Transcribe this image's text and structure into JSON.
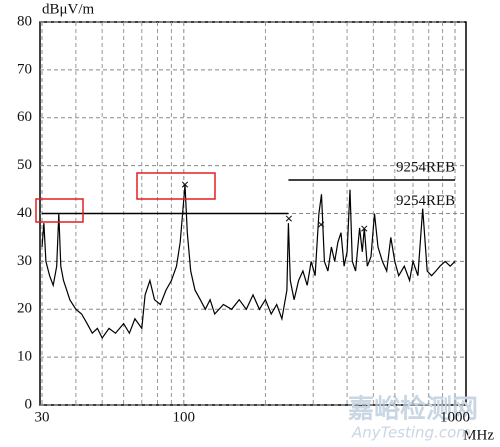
{
  "chart_data": {
    "type": "line",
    "y_label": "dBμV/m",
    "x_label": "MHz",
    "log_x": true,
    "grid": true,
    "xlim": [
      30,
      1000
    ],
    "ylim": [
      0,
      80
    ],
    "xticks": [
      30,
      100,
      1000
    ],
    "xminor": [
      40,
      50,
      60,
      70,
      80,
      90,
      200,
      300,
      400,
      500,
      600,
      700,
      800,
      900
    ],
    "yticks": [
      0,
      10,
      20,
      30,
      40,
      50,
      60,
      70,
      80
    ],
    "series": [
      {
        "color": "#000000",
        "x": [
          30,
          30.5,
          31,
          32,
          33,
          34,
          34.6,
          35.2,
          36,
          37,
          38,
          40,
          42,
          44,
          46,
          48,
          50,
          53,
          56,
          60,
          63,
          66,
          70,
          72,
          75,
          78,
          82,
          86,
          90,
          94,
          97,
          99,
          101,
          103,
          106,
          110,
          115,
          120,
          125,
          130,
          140,
          150,
          160,
          170,
          180,
          190,
          200,
          210,
          220,
          230,
          240,
          243,
          247,
          255,
          265,
          275,
          285,
          295,
          305,
          315,
          322,
          330,
          340,
          350,
          360,
          370,
          380,
          390,
          400,
          410,
          418,
          430,
          445,
          455,
          463,
          475,
          490,
          505,
          520,
          540,
          560,
          580,
          600,
          620,
          650,
          680,
          700,
          730,
          760,
          790,
          820,
          850,
          880,
          920,
          960,
          1000
        ],
        "values": [
          33,
          38,
          30,
          27,
          25,
          29,
          40,
          29,
          26,
          24,
          22,
          20,
          19,
          17,
          15,
          16,
          14,
          16,
          15,
          17,
          15,
          18,
          16,
          23,
          26,
          22,
          21,
          24,
          26,
          29,
          34,
          40,
          46,
          36,
          28,
          24,
          22,
          20,
          22,
          19,
          21,
          20,
          22,
          20,
          23,
          20,
          22,
          19,
          21,
          18,
          24,
          38,
          26,
          22,
          26,
          28,
          25,
          30,
          27,
          40,
          44,
          30,
          28,
          33,
          30,
          34,
          36,
          29,
          32,
          45,
          30,
          28,
          37,
          32,
          37,
          29,
          31,
          40,
          33,
          30,
          28,
          35,
          30,
          27,
          29,
          26,
          30,
          27,
          41,
          28,
          27,
          28,
          29,
          30,
          29,
          30
        ]
      },
      {
        "name": "9254REB",
        "color": "#000000",
        "x": [
          243,
          1000
        ],
        "values": [
          47,
          47
        ]
      },
      {
        "name": "9254REB",
        "color": "#000000",
        "x": [
          30,
          243
        ],
        "values": [
          40,
          40
        ]
      }
    ],
    "markers": {
      "x": [
        101,
        244,
        321,
        463
      ],
      "values": [
        45.7,
        38.6,
        37.4,
        36.5
      ]
    },
    "watermark": [
      "嘉峪检测网",
      "AnyTesting.com"
    ]
  }
}
